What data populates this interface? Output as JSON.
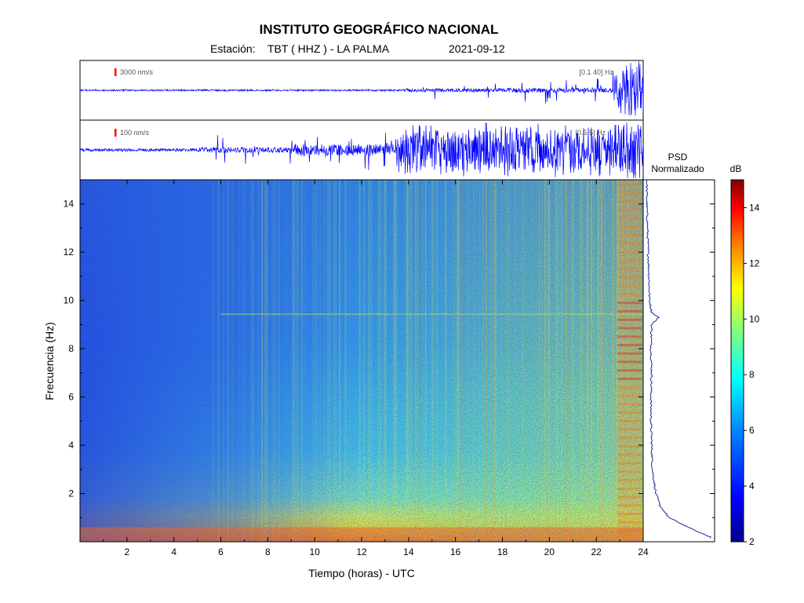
{
  "header": {
    "title": "INSTITUTO GEOGRÁFICO NACIONAL",
    "station_label": "Estación:",
    "station_value": "TBT ( HHZ ) - LA PALMA",
    "date": "2021-09-12"
  },
  "traces": [
    {
      "scale_label": "3000 nm/s",
      "band_label": "[0.1 40] Hz",
      "color": "#0000ff",
      "scale_bar_color": "#ff0000"
    },
    {
      "scale_label": "100 nm/s",
      "band_label": "[0.5 5] Hz",
      "color": "#0000ff",
      "scale_bar_color": "#ff0000"
    }
  ],
  "psd": {
    "title_line1": "PSD",
    "title_line2": "Normalizado"
  },
  "colorbar": {
    "unit": "dB",
    "range": [
      2,
      15
    ],
    "ticks": [
      "2",
      "4",
      "6",
      "8",
      "10",
      "12",
      "14"
    ],
    "colormap": [
      "#00008f",
      "#0000ff",
      "#0080ff",
      "#00ffff",
      "#80ff80",
      "#ffff00",
      "#ff8000",
      "#ff0000",
      "#800000"
    ]
  },
  "chart_data": {
    "type": "heatmap",
    "xlabel": "Tiempo (horas) - UTC",
    "ylabel": "Frecuencia  (Hz)",
    "xlim": [
      0,
      24
    ],
    "ylim": [
      0,
      15
    ],
    "x_ticks": [
      "2",
      "4",
      "6",
      "8",
      "10",
      "12",
      "14",
      "16",
      "18",
      "20",
      "22",
      "24"
    ],
    "y_ticks": [
      "2",
      "4",
      "6",
      "8",
      "10",
      "12",
      "14"
    ],
    "description": "Spectrogram of seismic signal; energy increases after ~13h and strongly at ~23h",
    "psd_profile": {
      "freq_hz": [
        0.2,
        0.5,
        1,
        1.5,
        2,
        3,
        4,
        5,
        6,
        7,
        8,
        9,
        9.3,
        9.5,
        10,
        11,
        12,
        13,
        14,
        15
      ],
      "value": [
        0.95,
        0.7,
        0.35,
        0.22,
        0.16,
        0.11,
        0.1,
        0.09,
        0.09,
        0.1,
        0.09,
        0.1,
        0.2,
        0.1,
        0.07,
        0.06,
        0.05,
        0.04,
        0.03,
        0.03
      ]
    }
  }
}
